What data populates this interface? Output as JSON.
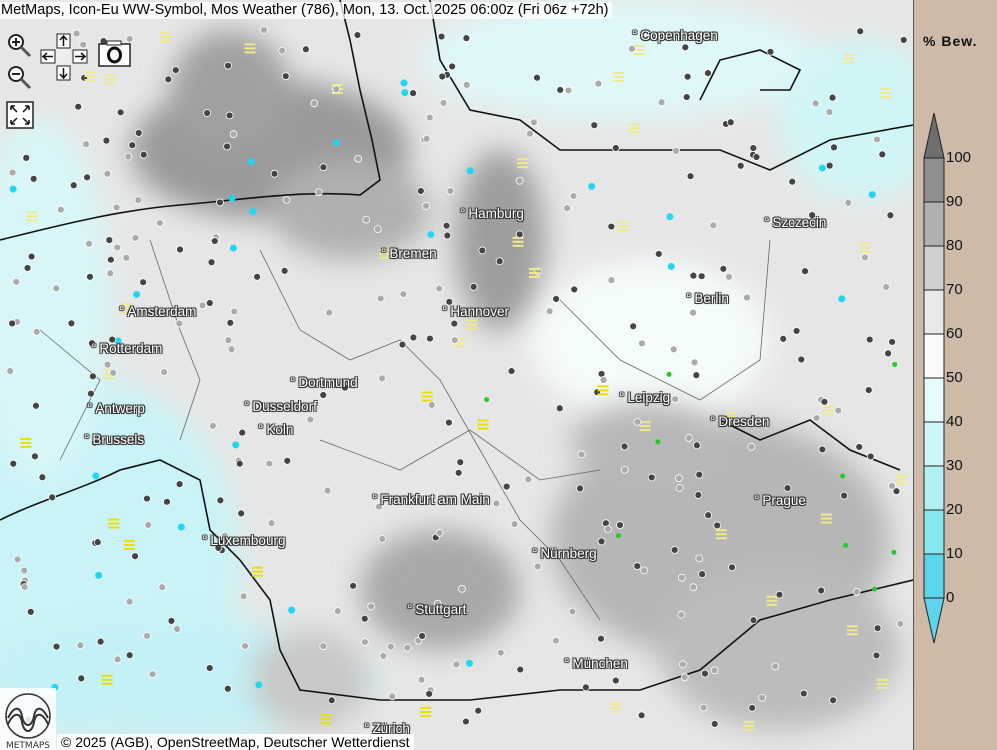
{
  "header": {
    "title": "MetMaps, Icon-Eu WW-Symbol, Mos Weather (786), Mon, 13. Oct. 2025 06:00z (Fri 06z +72h)"
  },
  "controls": {
    "zoom_in": "zoom-in-icon",
    "zoom_out": "zoom-out-icon",
    "pan": "pan-arrows-icon",
    "screenshot": "camera-icon",
    "fullscreen": "fullscreen-icon"
  },
  "cities": [
    {
      "name": "Copenhagen"
    },
    {
      "name": "Hamburg"
    },
    {
      "name": "Szczecin"
    },
    {
      "name": "Bremen"
    },
    {
      "name": "Berlin"
    },
    {
      "name": "Amsterdam"
    },
    {
      "name": "Hannover"
    },
    {
      "name": "Rotterdam"
    },
    {
      "name": "Dortmund"
    },
    {
      "name": "Leipzig"
    },
    {
      "name": "Antwerp"
    },
    {
      "name": "Dusseldorf"
    },
    {
      "name": "Dresden"
    },
    {
      "name": "Koln"
    },
    {
      "name": "Brussels"
    },
    {
      "name": "Frankfurt am Main"
    },
    {
      "name": "Prague"
    },
    {
      "name": "Luxembourg"
    },
    {
      "name": "Nürnberg"
    },
    {
      "name": "Stuttgart"
    },
    {
      "name": "München"
    },
    {
      "name": "Zürich"
    }
  ],
  "legend": {
    "title": "% Bew.",
    "levels": [
      "100",
      "90",
      "80",
      "70",
      "60",
      "50",
      "40",
      "30",
      "20",
      "10",
      "0"
    ],
    "colors": [
      "#6e6e6e",
      "#8f8f8f",
      "#b0b0b0",
      "#cfcfcf",
      "#e9e9e9",
      "#fafafa",
      "#e6fbfb",
      "#cdf6f8",
      "#b0f0f4",
      "#86e8ee",
      "#5cd4ea"
    ]
  },
  "footer": {
    "copyright": "© 2025 (AGB), OpenStreetMap, Deutscher Wetterdienst",
    "logo_text": "METMAPS"
  }
}
